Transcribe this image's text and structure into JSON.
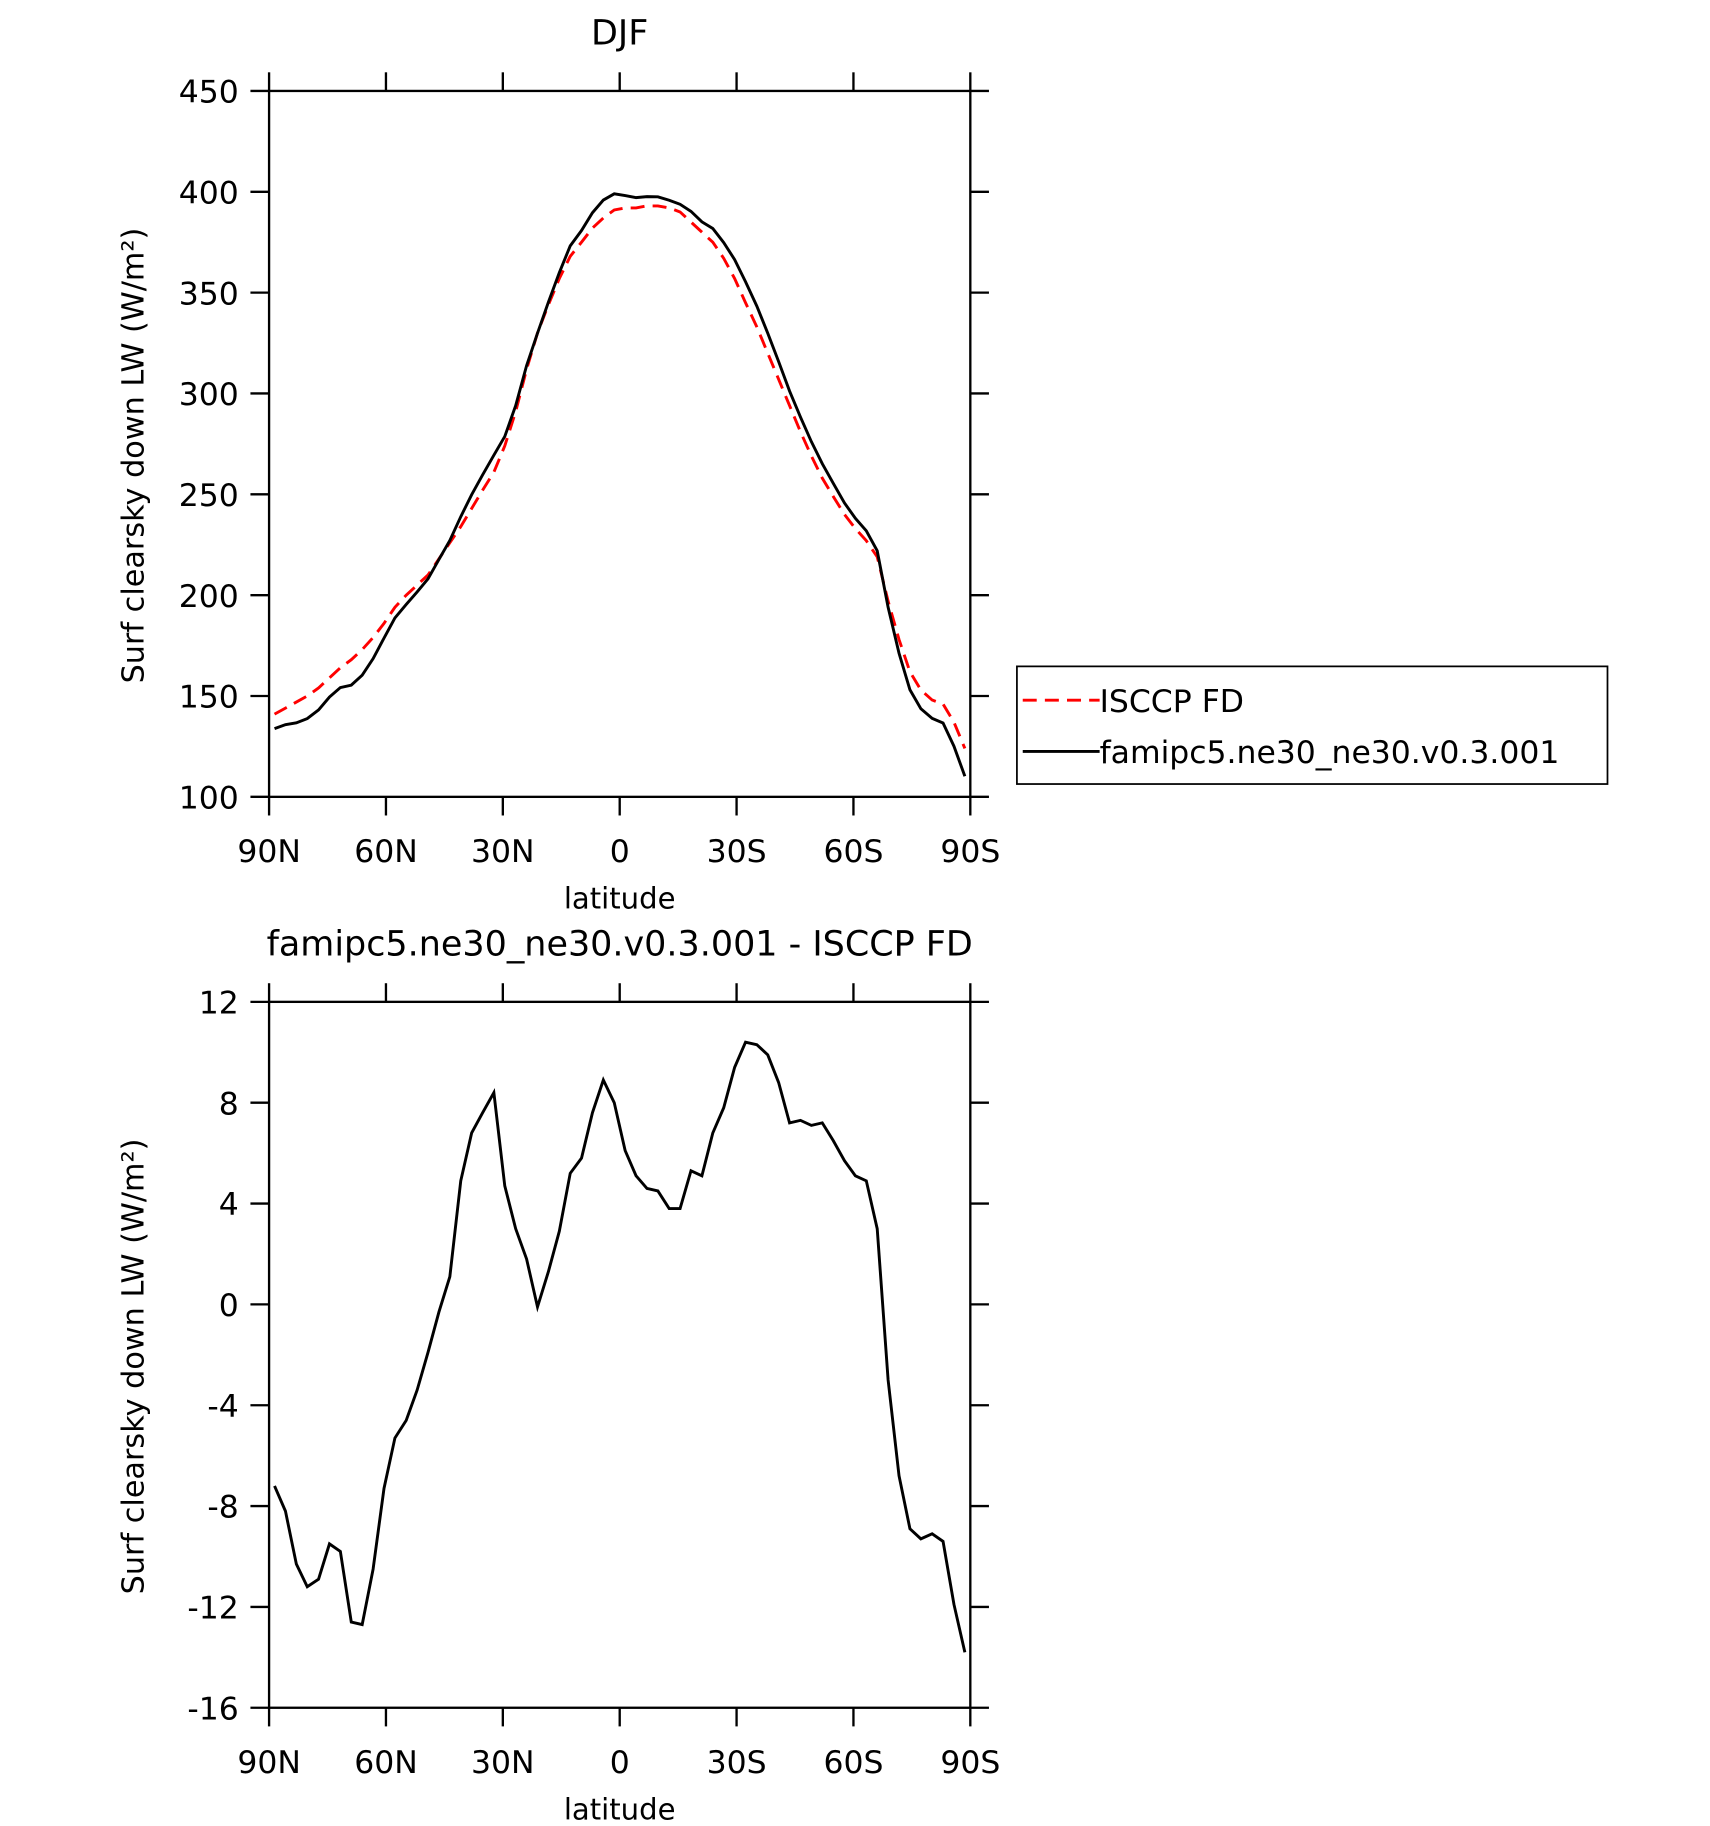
{
  "chart_data": [
    {
      "type": "line",
      "title": "DJF",
      "xlabel": "latitude",
      "ylabel": "Surf clearsky down LW (W/m²)",
      "x": [
        88.6,
        85.8,
        83.0,
        80.2,
        77.3,
        74.5,
        71.7,
        68.9,
        66.1,
        63.3,
        60.5,
        57.7,
        54.8,
        52.0,
        49.2,
        46.4,
        43.6,
        40.8,
        38.0,
        35.2,
        32.3,
        29.5,
        26.7,
        23.9,
        21.1,
        18.3,
        15.5,
        12.7,
        9.8,
        7.0,
        4.2,
        1.4,
        -1.4,
        -4.2,
        -7.0,
        -9.8,
        -12.7,
        -15.5,
        -18.3,
        -21.1,
        -23.9,
        -26.7,
        -29.5,
        -32.3,
        -35.2,
        -38.0,
        -40.8,
        -43.6,
        -46.4,
        -49.2,
        -52.0,
        -54.8,
        -57.7,
        -60.5,
        -63.3,
        -66.1,
        -68.9,
        -71.7,
        -74.5,
        -77.3,
        -80.2,
        -83.0,
        -85.8,
        -88.6
      ],
      "series": [
        {
          "name": "ISCCP FD",
          "color": "#ff0000",
          "dash": true,
          "values": [
            141,
            144,
            147,
            150,
            154,
            159,
            164,
            168,
            173,
            179,
            186,
            194,
            200,
            205,
            210,
            218,
            226,
            234,
            243,
            252,
            261,
            274,
            291,
            312,
            330,
            344,
            357,
            368,
            375,
            382,
            387,
            391,
            392,
            392,
            393,
            393,
            392,
            390,
            385,
            380,
            375,
            367,
            357,
            345,
            333,
            320,
            307,
            294,
            281,
            269,
            258,
            249,
            240,
            233,
            227,
            219,
            197,
            178,
            162,
            153,
            148,
            146,
            137,
            124
          ]
        },
        {
          "name": "famipc5.ne30_ne30.v0.3.001",
          "color": "#000000",
          "dash": false,
          "values": [
            133.8,
            135.8,
            136.7,
            138.8,
            143.1,
            149.5,
            154.2,
            155.4,
            160.3,
            168.5,
            178.7,
            188.7,
            195.4,
            201.6,
            208.1,
            217.7,
            227.1,
            238.9,
            249.8,
            259.6,
            269.4,
            278.7,
            294.0,
            313.8,
            329.9,
            345.3,
            359.9,
            373.2,
            380.8,
            389.6,
            395.9,
            399.0,
            398.1,
            397.1,
            397.6,
            397.5,
            395.8,
            393.8,
            390.3,
            385.1,
            381.8,
            374.8,
            366.4,
            355.4,
            343.3,
            329.9,
            315.8,
            301.2,
            288.3,
            276.1,
            265.2,
            255.5,
            245.7,
            238.1,
            231.9,
            222.0,
            194.0,
            171.2,
            153.1,
            143.7,
            138.9,
            136.6,
            125.1,
            110.2
          ]
        }
      ],
      "xlim": [
        90,
        -90
      ],
      "xticks": [
        {
          "value": 90,
          "label": "90N"
        },
        {
          "value": 60,
          "label": "60N"
        },
        {
          "value": 30,
          "label": "30N"
        },
        0,
        {
          "value": -30,
          "label": "30S"
        },
        {
          "value": -60,
          "label": "60S"
        },
        {
          "value": -90,
          "label": "90S"
        }
      ],
      "ylim": [
        100,
        450
      ],
      "yticks": [
        100,
        150,
        200,
        250,
        300,
        350,
        400,
        450
      ],
      "legend": "right"
    },
    {
      "type": "line",
      "title": "famipc5.ne30_ne30.v0.3.001 - ISCCP FD",
      "xlabel": "latitude",
      "ylabel": "Surf clearsky down LW (W/m²)",
      "x": [
        88.6,
        85.8,
        83.0,
        80.2,
        77.3,
        74.5,
        71.7,
        68.9,
        66.1,
        63.3,
        60.5,
        57.7,
        54.8,
        52.0,
        49.2,
        46.4,
        43.6,
        40.8,
        38.0,
        35.2,
        32.3,
        29.5,
        26.7,
        23.9,
        21.1,
        18.3,
        15.5,
        12.7,
        9.8,
        7.0,
        4.2,
        1.4,
        -1.4,
        -4.2,
        -7.0,
        -9.8,
        -12.7,
        -15.5,
        -18.3,
        -21.1,
        -23.9,
        -26.7,
        -29.5,
        -32.3,
        -35.2,
        -38.0,
        -40.8,
        -43.6,
        -46.4,
        -49.2,
        -52.0,
        -54.8,
        -57.7,
        -60.5,
        -63.3,
        -66.1,
        -68.9,
        -71.7,
        -74.5,
        -77.3,
        -80.2,
        -83.0,
        -85.8,
        -88.6
      ],
      "series": [
        {
          "color": "#000000",
          "dash": false,
          "values": [
            -7.2,
            -8.2,
            -10.3,
            -11.2,
            -10.9,
            -9.5,
            -9.8,
            -12.6,
            -12.7,
            -10.5,
            -7.3,
            -5.3,
            -4.6,
            -3.4,
            -1.9,
            -0.3,
            1.1,
            4.9,
            6.8,
            7.6,
            8.4,
            4.7,
            3.0,
            1.8,
            -0.1,
            1.3,
            2.9,
            5.2,
            5.8,
            7.6,
            8.9,
            8.0,
            6.1,
            5.1,
            4.6,
            4.5,
            3.8,
            3.8,
            5.3,
            5.1,
            6.8,
            7.8,
            9.4,
            10.4,
            10.3,
            9.9,
            8.8,
            7.2,
            7.3,
            7.1,
            7.2,
            6.5,
            5.7,
            5.1,
            4.9,
            3.0,
            -3.0,
            -6.8,
            -8.9,
            -9.3,
            -9.1,
            -9.4,
            -11.9,
            -13.8
          ]
        }
      ],
      "xlim": [
        90,
        -90
      ],
      "xticks": [
        {
          "value": 90,
          "label": "90N"
        },
        {
          "value": 60,
          "label": "60N"
        },
        {
          "value": 30,
          "label": "30N"
        },
        0,
        {
          "value": -30,
          "label": "30S"
        },
        {
          "value": -60,
          "label": "60S"
        },
        {
          "value": -90,
          "label": "90S"
        }
      ],
      "ylim": [
        -16,
        12
      ],
      "yticks": [
        -16,
        -12,
        -8,
        -4,
        0,
        4,
        8,
        12
      ]
    }
  ]
}
